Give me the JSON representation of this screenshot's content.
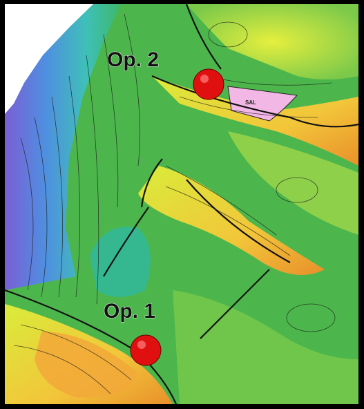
{
  "map": {
    "wells": [
      {
        "label": "Op. 2"
      },
      {
        "label": "Op. 1"
      }
    ],
    "salt_label": "SAL"
  }
}
